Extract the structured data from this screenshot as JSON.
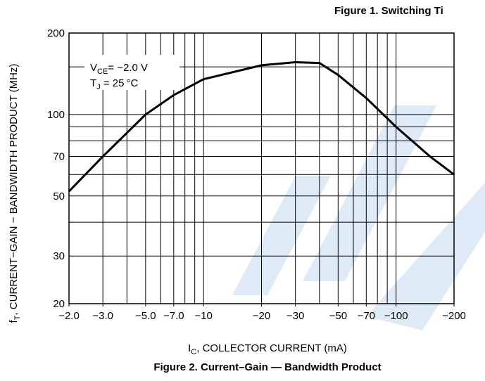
{
  "chart_data": {
    "type": "line",
    "header_title": "Figure 1. Switching Ti",
    "title": "Figure 2. Current–Gain — Bandwidth Product",
    "x_label": [
      "I",
      "C",
      ", COLLECTOR CURRENT (mA)"
    ],
    "y_label": [
      "f",
      "T",
      ", CURRENT−GAIN − BANDWIDTH PRODUCT (MHz)"
    ],
    "annotations": [
      [
        "V",
        "CE",
        "= −2.0 V"
      ],
      [
        "T",
        "J",
        " = 25 °C"
      ]
    ],
    "xlog": true,
    "ylog": true,
    "xlim": [
      -2,
      -200
    ],
    "ylim": [
      20,
      200
    ],
    "xticks": [
      {
        "value": -2,
        "label": "−2.0"
      },
      {
        "value": -3,
        "label": "−3.0"
      },
      {
        "value": -5,
        "label": "−5.0"
      },
      {
        "value": -7,
        "label": "−7.0"
      },
      {
        "value": -10,
        "label": "−10"
      },
      {
        "value": -20,
        "label": "−20"
      },
      {
        "value": -30,
        "label": "−30"
      },
      {
        "value": -50,
        "label": "−50"
      },
      {
        "value": -70,
        "label": "−70"
      },
      {
        "value": -100,
        "label": "−100"
      },
      {
        "value": -200,
        "label": "−200"
      }
    ],
    "yticks": [
      20,
      30,
      50,
      70,
      100,
      200
    ],
    "xgrid": [
      -2,
      -3,
      -4,
      -5,
      -6,
      -7,
      -8,
      -9,
      -10,
      -20,
      -30,
      -40,
      -50,
      -60,
      -70,
      -80,
      -90,
      -100,
      -200
    ],
    "ygrid": [
      20,
      30,
      40,
      50,
      60,
      70,
      80,
      90,
      100,
      150,
      200
    ],
    "grid": true,
    "series": [
      {
        "name": "fT",
        "color": "#000000",
        "x": [
          -2,
          -3,
          -5,
          -7,
          -10,
          -20,
          -30,
          -40,
          -50,
          -70,
          -100,
          -150,
          -200
        ],
        "values": [
          52,
          70,
          100,
          118,
          135,
          152,
          156,
          155,
          140,
          115,
          90,
          70,
          60
        ]
      }
    ]
  }
}
